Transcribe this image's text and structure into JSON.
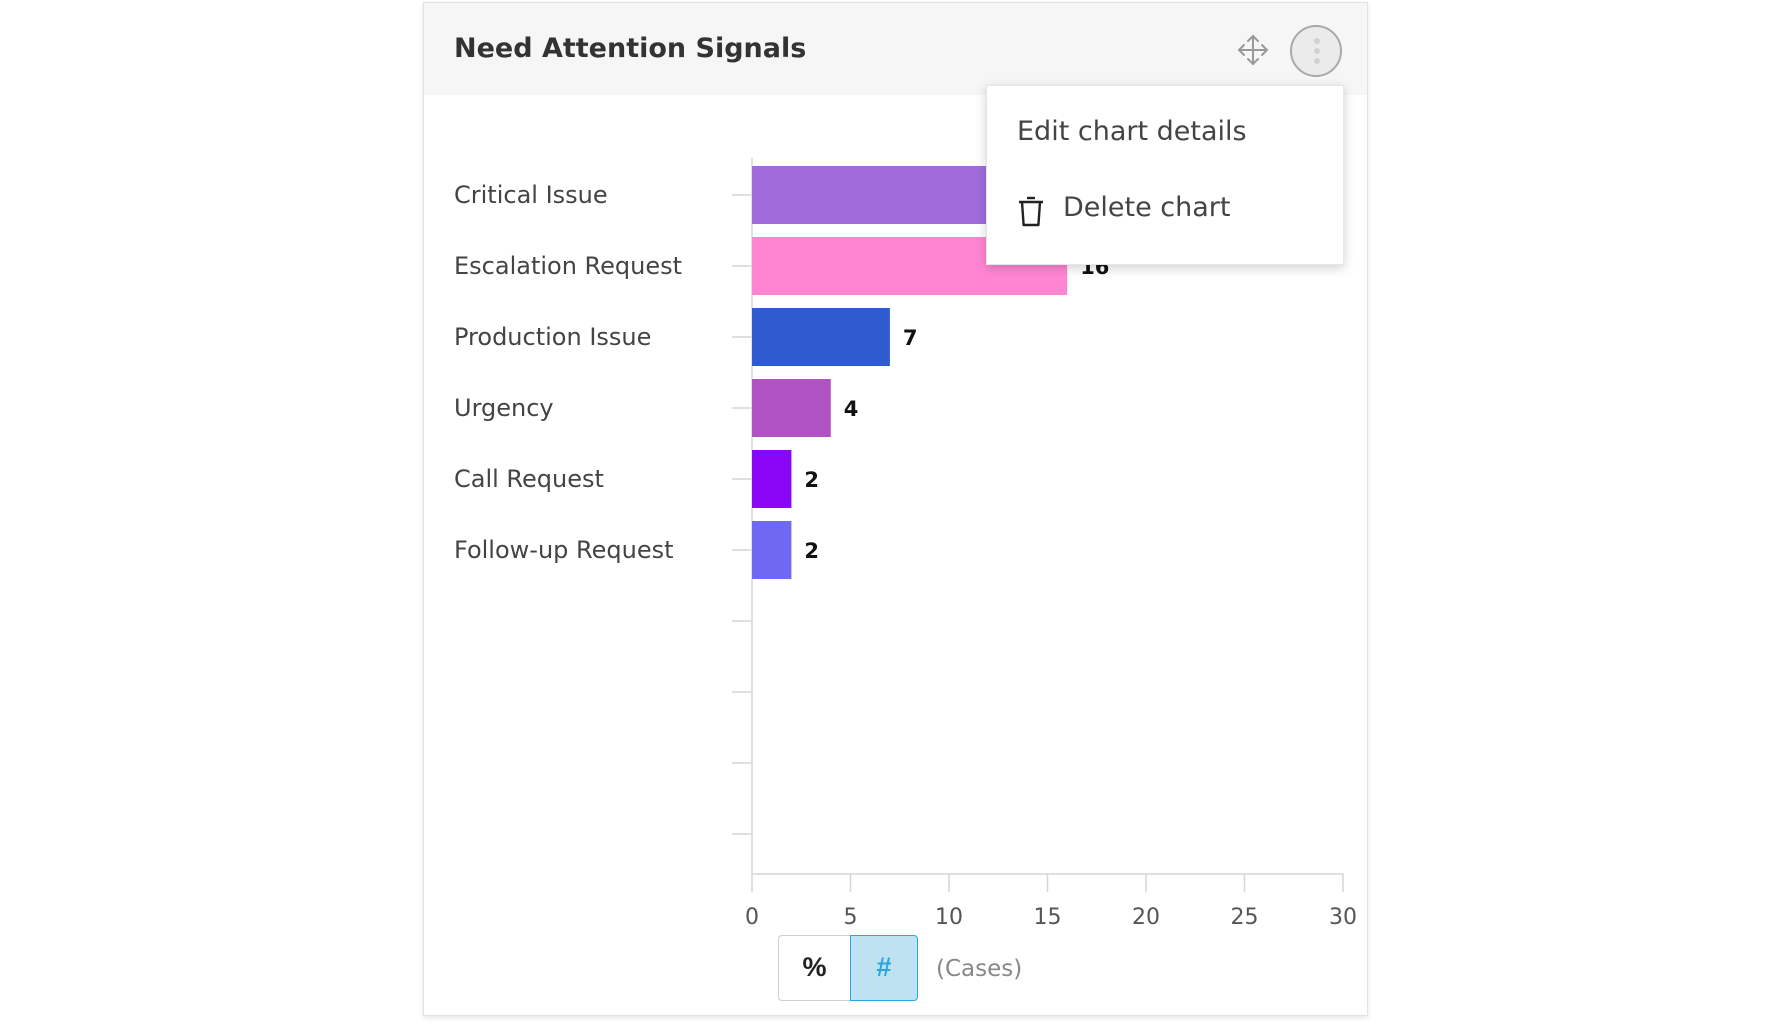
{
  "card": {
    "title": "Need Attention Signals"
  },
  "header_icons": {
    "move": "move-arrows-icon",
    "more": "more-vertical-icon"
  },
  "menu": {
    "edit_label": "Edit chart details",
    "delete_label": "Delete chart",
    "delete_icon": "trash-icon"
  },
  "toggle": {
    "percent_label": "%",
    "count_label": "#",
    "selected": "#",
    "unit_label": "(Cases)"
  },
  "chart_data": {
    "type": "bar",
    "orientation": "horizontal",
    "categories": [
      "Critical Issue",
      "Escalation Request",
      "Production Issue",
      "Urgency",
      "Call Request",
      "Follow-up Request"
    ],
    "values": [
      null,
      16,
      7,
      4,
      2,
      2
    ],
    "value_labels": [
      "",
      "16",
      "7",
      "4",
      "2",
      "2"
    ],
    "colors": [
      "#a16bdb",
      "#ff85d3",
      "#2e5bcf",
      "#b052c2",
      "#8a06f7",
      "#6f68f2"
    ],
    "xlim": [
      0,
      30
    ],
    "xticks": [
      "0",
      "5",
      "10",
      "15",
      "20",
      "25",
      "30"
    ],
    "grid": false,
    "empty_rows": 4
  }
}
